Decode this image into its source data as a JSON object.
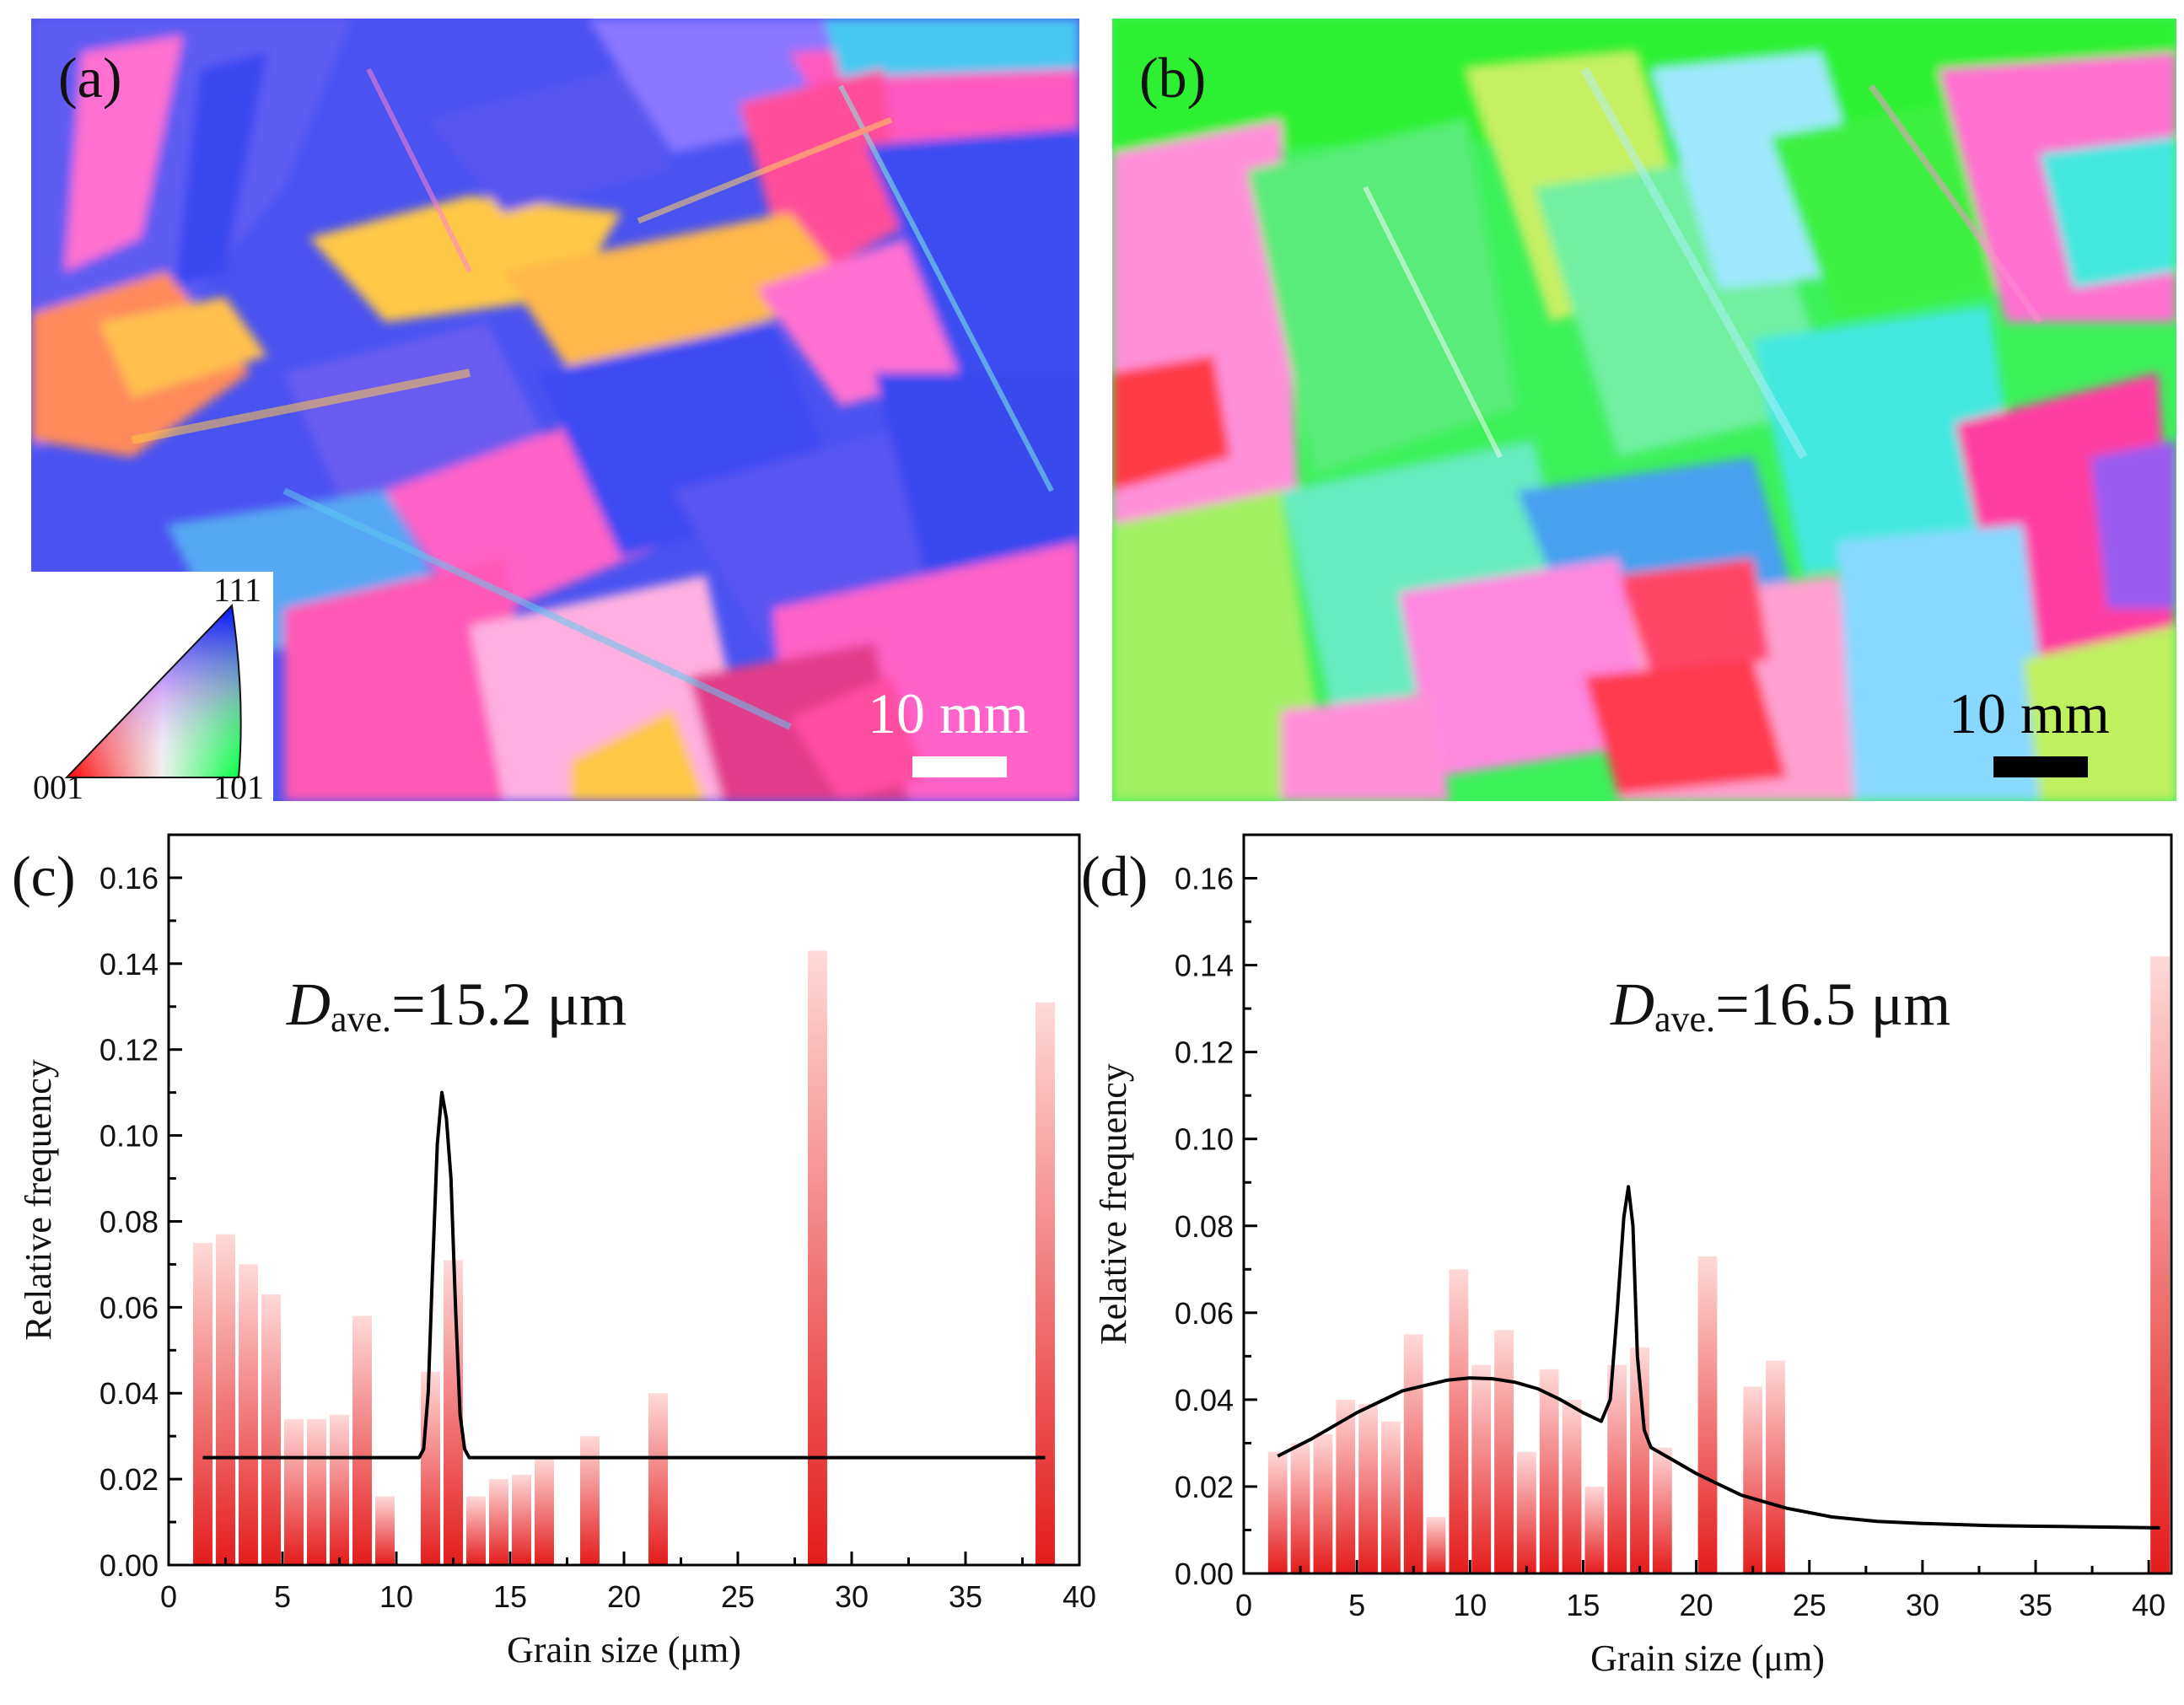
{
  "panels": {
    "a": {
      "label": "(a)",
      "scale_bar_text": "10 mm",
      "scale_bar_color": "#ffffff",
      "dominant_colors": [
        "#3a4cf0",
        "#6a5cf0",
        "#ff62c8",
        "#ffc846",
        "#ff8a5c",
        "#ff4e9a",
        "#8a76ff",
        "#46c8f0"
      ],
      "legend": {
        "corner_001": "001",
        "corner_101": "101",
        "corner_111": "111"
      }
    },
    "b": {
      "label": "(b)",
      "scale_bar_text": "10 mm",
      "scale_bar_color": "#000000",
      "dominant_colors": [
        "#3cf53c",
        "#5aec7a",
        "#44e8e0",
        "#ff5ec8",
        "#ffa0d0",
        "#ff3a4e",
        "#c8f064",
        "#88d8ff"
      ]
    }
  },
  "annotations": {
    "c": {
      "D": "D",
      "subscript": "ave.",
      "value_text": "=15.2 μm"
    },
    "d": {
      "D": "D",
      "subscript": "ave.",
      "value_text": "=16.5 μm"
    }
  },
  "chart_data": [
    {
      "type": "bar",
      "panel_label": "(c)",
      "xlabel": "Grain size (μm)",
      "ylabel": "Relative frequency",
      "xlim": [
        0,
        40
      ],
      "ylim": [
        0,
        0.17
      ],
      "xticks": [
        0,
        5,
        10,
        15,
        20,
        25,
        30,
        35,
        40
      ],
      "yticks": [
        0.0,
        0.02,
        0.04,
        0.06,
        0.08,
        0.1,
        0.12,
        0.14,
        0.16
      ],
      "bar_width": 0.85,
      "bar_color_top": "#ffd9d9",
      "bar_color_bottom": "#e41c1c",
      "x": [
        1.5,
        2.5,
        3.5,
        4.5,
        5.5,
        6.5,
        7.5,
        8.5,
        9.5,
        11.5,
        12.5,
        13.5,
        14.5,
        15.5,
        16.5,
        18.5,
        21.5,
        28.5,
        38.5
      ],
      "values": [
        0.075,
        0.077,
        0.07,
        0.063,
        0.034,
        0.034,
        0.035,
        0.058,
        0.016,
        0.045,
        0.071,
        0.016,
        0.02,
        0.021,
        0.025,
        0.03,
        0.04,
        0.143,
        0.131
      ],
      "fit_line": {
        "x": [
          1.5,
          11.0,
          11.2,
          11.4,
          11.6,
          11.8,
          12.0,
          12.2,
          12.4,
          12.6,
          12.8,
          13.0,
          13.2,
          13.5,
          38.5
        ],
        "y": [
          0.025,
          0.025,
          0.027,
          0.04,
          0.07,
          0.098,
          0.11,
          0.104,
          0.09,
          0.06,
          0.035,
          0.027,
          0.025,
          0.025,
          0.025
        ]
      }
    },
    {
      "type": "bar",
      "panel_label": "(d)",
      "xlabel": "Grain size (μm)",
      "ylabel": "Relative frequency",
      "xlim": [
        0,
        41
      ],
      "ylim": [
        0,
        0.17
      ],
      "xticks": [
        0,
        5,
        10,
        15,
        20,
        25,
        30,
        35,
        40
      ],
      "yticks": [
        0.0,
        0.02,
        0.04,
        0.06,
        0.08,
        0.1,
        0.12,
        0.14,
        0.16
      ],
      "bar_width": 0.85,
      "bar_color_top": "#ffd9d9",
      "bar_color_bottom": "#e41c1c",
      "x": [
        1.5,
        2.5,
        3.5,
        4.5,
        5.5,
        6.5,
        7.5,
        8.5,
        9.5,
        10.5,
        11.5,
        12.5,
        13.5,
        14.5,
        15.5,
        16.5,
        17.5,
        18.5,
        20.5,
        22.5,
        23.5,
        40.5
      ],
      "values": [
        0.028,
        0.03,
        0.032,
        0.04,
        0.039,
        0.035,
        0.055,
        0.013,
        0.07,
        0.048,
        0.056,
        0.028,
        0.047,
        0.04,
        0.02,
        0.048,
        0.052,
        0.029,
        0.073,
        0.043,
        0.049,
        0.142
      ],
      "fit_line": {
        "x": [
          1.5,
          3,
          5,
          7,
          9,
          10,
          11,
          12,
          13,
          14,
          15,
          15.8,
          16.2,
          16.5,
          16.8,
          17.0,
          17.2,
          17.4,
          17.7,
          18,
          19,
          20,
          22,
          24,
          26,
          28,
          30,
          33,
          36,
          40.5
        ],
        "y": [
          0.027,
          0.031,
          0.037,
          0.042,
          0.0445,
          0.045,
          0.0448,
          0.044,
          0.0425,
          0.04,
          0.037,
          0.035,
          0.04,
          0.06,
          0.082,
          0.089,
          0.08,
          0.05,
          0.033,
          0.029,
          0.026,
          0.023,
          0.018,
          0.015,
          0.013,
          0.012,
          0.0115,
          0.011,
          0.0108,
          0.0105
        ]
      }
    }
  ]
}
